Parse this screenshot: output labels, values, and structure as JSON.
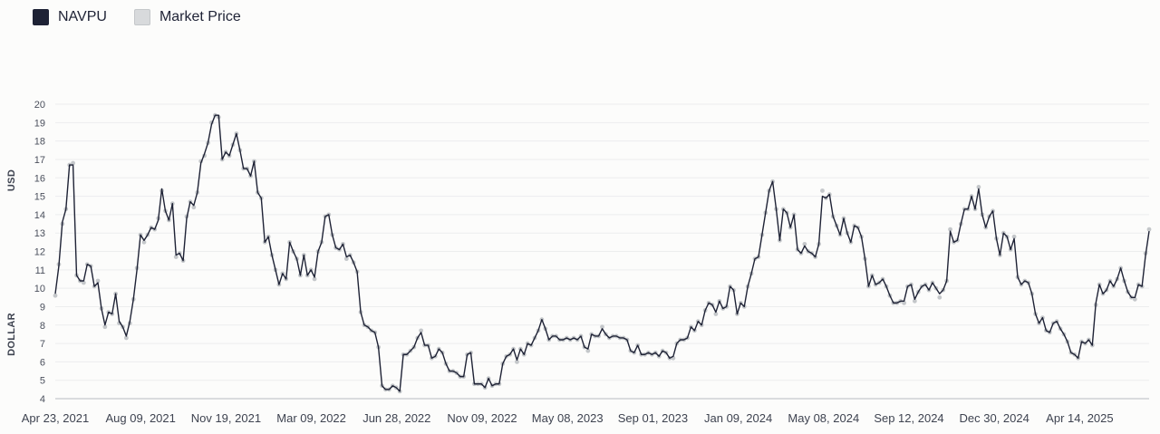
{
  "legend": {
    "navpu_label": "NAVPU",
    "market_label": "Market Price"
  },
  "colors": {
    "navpu": "#1e2235",
    "market": "#c4c7ca",
    "grid": "#ecedee",
    "axis": "#b9bcc2"
  },
  "chart_data": {
    "type": "line",
    "ylabel_top": "USD",
    "ylabel_bottom": "DOLLAR",
    "ylim": [
      4,
      20
    ],
    "yticks": [
      4,
      5,
      6,
      7,
      8,
      9,
      10,
      11,
      12,
      13,
      14,
      15,
      16,
      17,
      18,
      19,
      20
    ],
    "grid": true,
    "legend_position": "top-left",
    "x_labels": [
      "Apr 23, 2021",
      "Aug 09, 2021",
      "Nov 19, 2021",
      "Mar 09, 2022",
      "Jun 28, 2022",
      "Nov 09, 2022",
      "May 08, 2023",
      "Sep 01, 2023",
      "Jan 09, 2024",
      "May 08, 2024",
      "Sep 12, 2024",
      "Dec 30, 2024",
      "Apr 14, 2025"
    ],
    "series": [
      {
        "name": "NAVPU",
        "values": [
          9.7,
          11.2,
          13.6,
          14.3,
          16.7,
          16.7,
          10.7,
          10.4,
          10.4,
          11.3,
          11.2,
          10.1,
          10.3,
          8.9,
          8.0,
          8.7,
          8.6,
          9.7,
          8.2,
          7.9,
          7.4,
          8.2,
          9.4,
          11.0,
          12.9,
          12.6,
          12.9,
          13.3,
          13.2,
          13.7,
          15.4,
          14.2,
          13.7,
          14.6,
          11.8,
          11.9,
          11.5,
          13.8,
          14.7,
          14.5,
          15.2,
          16.8,
          17.3,
          17.9,
          18.9,
          19.4,
          19.4,
          17.0,
          17.4,
          17.2,
          17.8,
          18.4,
          17.5,
          16.5,
          16.5,
          16.1,
          16.9,
          15.2,
          14.9,
          12.5,
          12.8,
          11.8,
          11.0,
          10.2,
          10.8,
          10.5,
          12.5,
          12.0,
          11.6,
          10.7,
          11.8,
          10.7,
          11.0,
          10.6,
          12.0,
          12.5,
          13.9,
          14.0,
          12.9,
          12.2,
          12.1,
          12.4,
          11.7,
          11.8,
          11.4,
          10.9,
          8.7,
          8.0,
          7.9,
          7.7,
          7.6,
          6.8,
          4.7,
          4.5,
          4.5,
          4.7,
          4.6,
          4.4,
          6.4,
          6.4,
          6.6,
          6.8,
          7.3,
          7.6,
          6.9,
          6.9,
          6.2,
          6.3,
          6.7,
          6.5,
          5.9,
          5.5,
          5.5,
          5.4,
          5.2,
          5.2,
          6.4,
          6.5,
          4.8,
          4.8,
          4.8,
          4.6,
          5.1,
          4.7,
          4.8,
          4.8,
          5.9,
          6.3,
          6.4,
          6.7,
          6.1,
          6.7,
          6.4,
          7.0,
          6.9,
          7.3,
          7.7,
          8.3,
          7.8,
          7.2,
          7.4,
          7.4,
          7.2,
          7.2,
          7.3,
          7.2,
          7.3,
          7.2,
          7.4,
          6.8,
          6.7,
          7.5,
          7.4,
          7.4,
          7.8,
          7.5,
          7.3,
          7.4,
          7.4,
          7.3,
          7.3,
          7.2,
          6.6,
          6.5,
          6.9,
          6.4,
          6.4,
          6.5,
          6.4,
          6.5,
          6.3,
          6.6,
          6.5,
          6.2,
          6.3,
          7.0,
          7.2,
          7.2,
          7.3,
          7.9,
          7.7,
          8.2,
          8.0,
          8.8,
          9.2,
          9.1,
          8.7,
          9.3,
          8.9,
          9.0,
          10.1,
          9.9,
          8.6,
          9.2,
          9.0,
          10.1,
          10.8,
          11.6,
          11.7,
          12.9,
          14.1,
          15.3,
          15.8,
          14.3,
          12.6,
          14.3,
          14.1,
          13.3,
          14.0,
          12.1,
          11.9,
          12.3,
          12.0,
          11.9,
          11.7,
          12.4,
          15.0,
          14.9,
          15.1,
          13.9,
          13.4,
          12.9,
          13.8,
          13.0,
          12.5,
          13.4,
          13.3,
          12.8,
          11.6,
          10.1,
          10.7,
          10.2,
          10.3,
          10.5,
          10.1,
          9.6,
          9.2,
          9.2,
          9.3,
          9.3,
          10.1,
          10.2,
          9.4,
          9.8,
          10.1,
          10.2,
          9.9,
          10.3,
          10.0,
          9.7,
          9.9,
          10.4,
          13.1,
          12.5,
          12.6,
          13.5,
          14.3,
          14.3,
          15.0,
          14.3,
          15.4,
          14.0,
          13.3,
          13.9,
          14.2,
          12.7,
          11.8,
          13.0,
          12.8,
          12.1,
          12.7,
          10.6,
          10.2,
          10.4,
          10.3,
          9.7,
          8.6,
          8.1,
          8.4,
          7.7,
          7.6,
          8.1,
          8.2,
          7.8,
          7.5,
          7.1,
          6.5,
          6.4,
          6.2,
          7.1,
          7.0,
          7.2,
          6.9,
          9.2,
          10.2,
          9.7,
          9.9,
          10.4,
          10.1,
          10.5,
          11.1,
          10.4,
          9.8,
          9.5,
          9.5,
          10.2,
          10.1,
          11.8,
          13.1
        ]
      },
      {
        "name": "Market Price",
        "values": [
          9.6,
          11.3,
          13.5,
          14.3,
          16.7,
          16.8,
          10.7,
          10.4,
          10.3,
          11.3,
          11.2,
          10.1,
          10.4,
          8.9,
          7.9,
          8.7,
          8.6,
          9.7,
          8.1,
          7.9,
          7.3,
          8.1,
          9.4,
          11.1,
          12.9,
          12.5,
          12.9,
          13.3,
          13.2,
          13.8,
          15.3,
          14.2,
          13.7,
          14.6,
          11.7,
          11.9,
          11.5,
          13.9,
          14.7,
          14.4,
          15.2,
          16.9,
          17.2,
          17.9,
          19.0,
          19.4,
          19.3,
          17.0,
          17.4,
          17.2,
          17.8,
          18.4,
          17.5,
          16.5,
          16.5,
          16.1,
          16.9,
          15.2,
          14.9,
          12.5,
          12.8,
          11.8,
          11.0,
          10.2,
          10.8,
          10.5,
          12.5,
          12.0,
          11.6,
          10.7,
          11.8,
          10.7,
          11.0,
          10.5,
          12.0,
          12.5,
          13.9,
          14.0,
          12.9,
          12.2,
          12.1,
          12.4,
          11.6,
          11.8,
          11.4,
          10.9,
          8.7,
          8.0,
          7.9,
          7.7,
          7.6,
          6.8,
          4.7,
          4.5,
          4.5,
          4.7,
          4.6,
          4.4,
          6.4,
          6.4,
          6.6,
          6.8,
          7.3,
          7.7,
          6.9,
          6.9,
          6.2,
          6.3,
          6.7,
          6.5,
          5.9,
          5.5,
          5.5,
          5.4,
          5.2,
          5.2,
          6.4,
          6.5,
          4.8,
          4.8,
          4.8,
          4.6,
          5.1,
          4.7,
          4.8,
          4.8,
          5.9,
          6.3,
          6.4,
          6.7,
          6.0,
          6.7,
          6.4,
          7.0,
          6.9,
          7.3,
          7.7,
          8.3,
          7.8,
          7.2,
          7.4,
          7.4,
          7.2,
          7.2,
          7.3,
          7.2,
          7.3,
          7.2,
          7.4,
          6.8,
          6.6,
          7.5,
          7.4,
          7.4,
          7.9,
          7.5,
          7.3,
          7.4,
          7.4,
          7.3,
          7.3,
          7.2,
          6.6,
          6.5,
          6.9,
          6.4,
          6.4,
          6.5,
          6.4,
          6.5,
          6.3,
          6.6,
          6.5,
          6.2,
          6.2,
          7.0,
          7.2,
          7.2,
          7.3,
          7.9,
          7.7,
          8.2,
          8.0,
          8.8,
          9.2,
          9.1,
          8.6,
          9.3,
          8.9,
          9.0,
          10.1,
          9.9,
          8.6,
          9.2,
          9.0,
          10.1,
          10.8,
          11.6,
          11.7,
          12.9,
          14.1,
          15.3,
          15.8,
          14.3,
          12.6,
          14.3,
          14.1,
          13.3,
          14.0,
          12.1,
          11.9,
          12.4,
          12.0,
          11.9,
          11.7,
          12.4,
          15.3,
          14.9,
          15.1,
          13.9,
          13.4,
          12.9,
          13.8,
          13.0,
          12.5,
          13.4,
          13.3,
          12.8,
          11.6,
          10.1,
          10.7,
          10.2,
          10.3,
          10.5,
          10.1,
          9.6,
          9.2,
          9.2,
          9.3,
          9.2,
          10.1,
          10.2,
          9.3,
          9.8,
          10.1,
          10.2,
          9.9,
          10.3,
          10.0,
          9.5,
          9.9,
          10.4,
          13.2,
          12.5,
          12.6,
          13.5,
          14.3,
          14.3,
          15.0,
          14.3,
          15.5,
          14.0,
          13.3,
          13.9,
          14.2,
          12.7,
          11.8,
          13.0,
          12.8,
          12.1,
          12.8,
          10.6,
          10.2,
          10.4,
          10.3,
          9.7,
          8.6,
          8.1,
          8.4,
          7.7,
          7.6,
          8.1,
          8.2,
          7.8,
          7.5,
          7.1,
          6.5,
          6.4,
          6.2,
          7.1,
          7.0,
          7.2,
          6.9,
          9.1,
          10.2,
          9.7,
          9.9,
          10.4,
          10.1,
          10.5,
          11.1,
          10.4,
          9.8,
          9.5,
          9.4,
          10.2,
          10.1,
          11.9,
          13.2
        ]
      }
    ]
  }
}
